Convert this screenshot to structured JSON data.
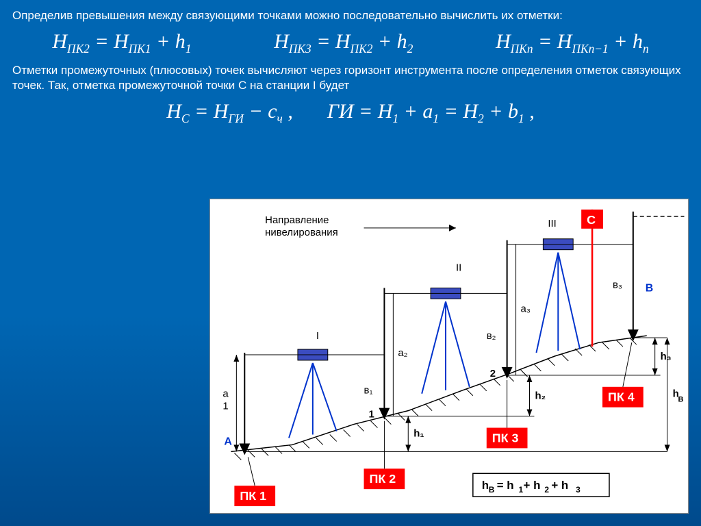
{
  "intro": "Определив превышения между связующими точками можно последовательно вычислить их отметки:",
  "equations": {
    "e1": "H<sub class='sub'>ПК2</sub> = H<sub class='sub'>ПК1</sub> + h<sub class='sub'>1</sub>",
    "e2": "H<sub class='sub'>ПК3</sub> = H<sub class='sub'>ПК2</sub> + h<sub class='sub'>2</sub>",
    "e3": "H<sub class='sub'>ПКn</sub> = H<sub class='sub'>ПКn−1</sub> + h<sub class='sub'>n</sub>",
    "e4": "H<sub class='sub'>C</sub> = H<sub class='sub'>ГИ</sub> − c<sub class='sub'>ч</sub> ,",
    "e5": "ГИ = H<sub class='sub'>1</sub> + a<sub class='sub'>1</sub> = H<sub class='sub'>2</sub> + b<sub class='sub'>1</sub> ,"
  },
  "mid": "Отметки промежуточных (плюсовых) точек вычисляют через горизонт инструмента после определения отметок связующих точек. Так, отметка промежуточной точки C на станции I будет",
  "diagram": {
    "direction_label": "Направление\nнивелирования",
    "stations": {
      "I": "I",
      "II": "II",
      "III": "III"
    },
    "points": {
      "A": "A",
      "B": "B",
      "C": "C",
      "n1": "1",
      "n2": "2"
    },
    "pk": {
      "pk1": "ПК 1",
      "pk2": "ПК 2",
      "pk3": "ПК 3",
      "pk4": "ПК 4"
    },
    "readings": {
      "a1": "а\n1",
      "a2": "а₂",
      "a3": "а₃",
      "b1": "в₁",
      "b2": "в₂",
      "b3": "в₃"
    },
    "heights": {
      "h1": "h₁",
      "h2": "h₂",
      "h3": "h₃",
      "hB": "h",
      "hB2": "B"
    },
    "formula": "hB = h1+ h2 + h3",
    "colors": {
      "bg": "#ffffff",
      "red": "#ff0000",
      "blue": "#0033cc",
      "levelbox": "#3b4cc0",
      "black": "#000000",
      "redstaff": "#ff0000"
    }
  }
}
